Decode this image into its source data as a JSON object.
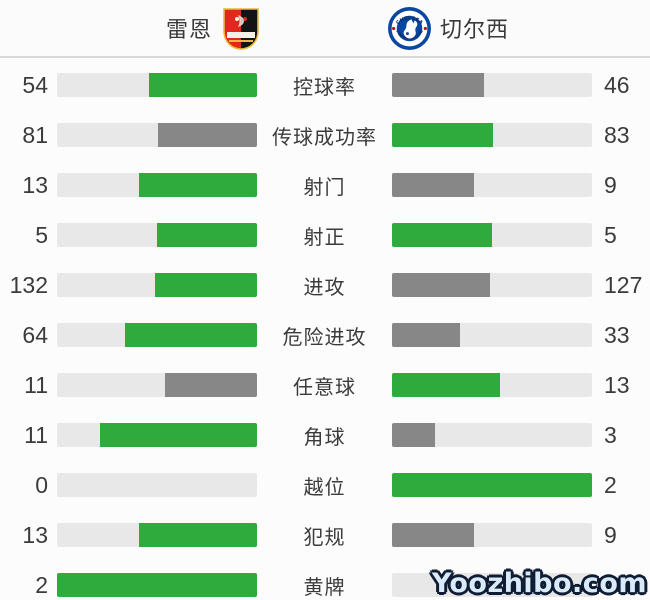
{
  "header": {
    "home_team": "雷恩",
    "away_team": "切尔西"
  },
  "colors": {
    "green": "#2faa3d",
    "gray": "#878787",
    "track": "#e8e8e8",
    "rennes_red": "#e0281e",
    "rennes_black": "#141414",
    "rennes_gold": "#e8b93c",
    "chelsea_blue": "#0a47a0"
  },
  "watermark": {
    "text": "Yoozhibo.com"
  },
  "chart_data": {
    "type": "bar",
    "layout": "horizontal-mirrored-comparison",
    "grid": false,
    "legend_position": "top",
    "categories": [
      "控球率",
      "传球成功率",
      "射门",
      "射正",
      "进攻",
      "危险进攻",
      "任意球",
      "角球",
      "越位",
      "犯规",
      "黄牌"
    ],
    "series": [
      {
        "name": "雷恩",
        "values": [
          54,
          81,
          13,
          5,
          132,
          64,
          11,
          11,
          0,
          13,
          2
        ],
        "bar_colors": [
          "green",
          "gray",
          "green",
          "green",
          "green",
          "green",
          "gray",
          "green",
          "none",
          "green",
          "green"
        ]
      },
      {
        "name": "切尔西",
        "values": [
          46,
          83,
          9,
          5,
          127,
          33,
          13,
          3,
          2,
          9,
          null
        ],
        "bar_colors": [
          "gray",
          "green",
          "gray",
          "green",
          "gray",
          "gray",
          "green",
          "gray",
          "green",
          "gray",
          "none"
        ]
      }
    ]
  }
}
